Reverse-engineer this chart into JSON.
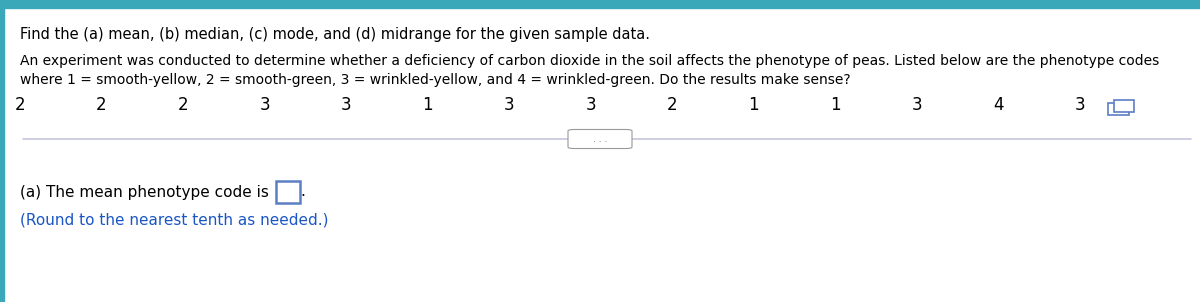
{
  "title_text": "Find the (a) mean, (b) median, (c) mode, and (d) midrange for the given sample data.",
  "body_text_line1": "An experiment was conducted to determine whether a deficiency of carbon dioxide in the soil affects the phenotype of peas. Listed below are the phenotype codes",
  "body_text_line2": "where 1 = smooth-yellow, 2 = smooth-green, 3 = wrinkled-yellow, and 4 = wrinkled-green. Do the results make sense?",
  "data_values": [
    "2",
    "2",
    "2",
    "3",
    "3",
    "1",
    "3",
    "3",
    "2",
    "1",
    "1",
    "3",
    "4",
    "3"
  ],
  "answer_line1": "(a) The mean phenotype code is",
  "answer_line2": "(Round to the nearest tenth as needed.)",
  "top_bar_color": "#3AA8B8",
  "left_bar_color": "#3AA8B8",
  "background_color": "#FFFFFF",
  "title_fontsize": 10.5,
  "body_fontsize": 10.0,
  "data_fontsize": 12.0,
  "answer_fontsize": 11.0,
  "answer_color": "#1a56c4",
  "box_color": "#5b7ec4",
  "separator_color": "#aaaacc",
  "dots_color": "#666666"
}
